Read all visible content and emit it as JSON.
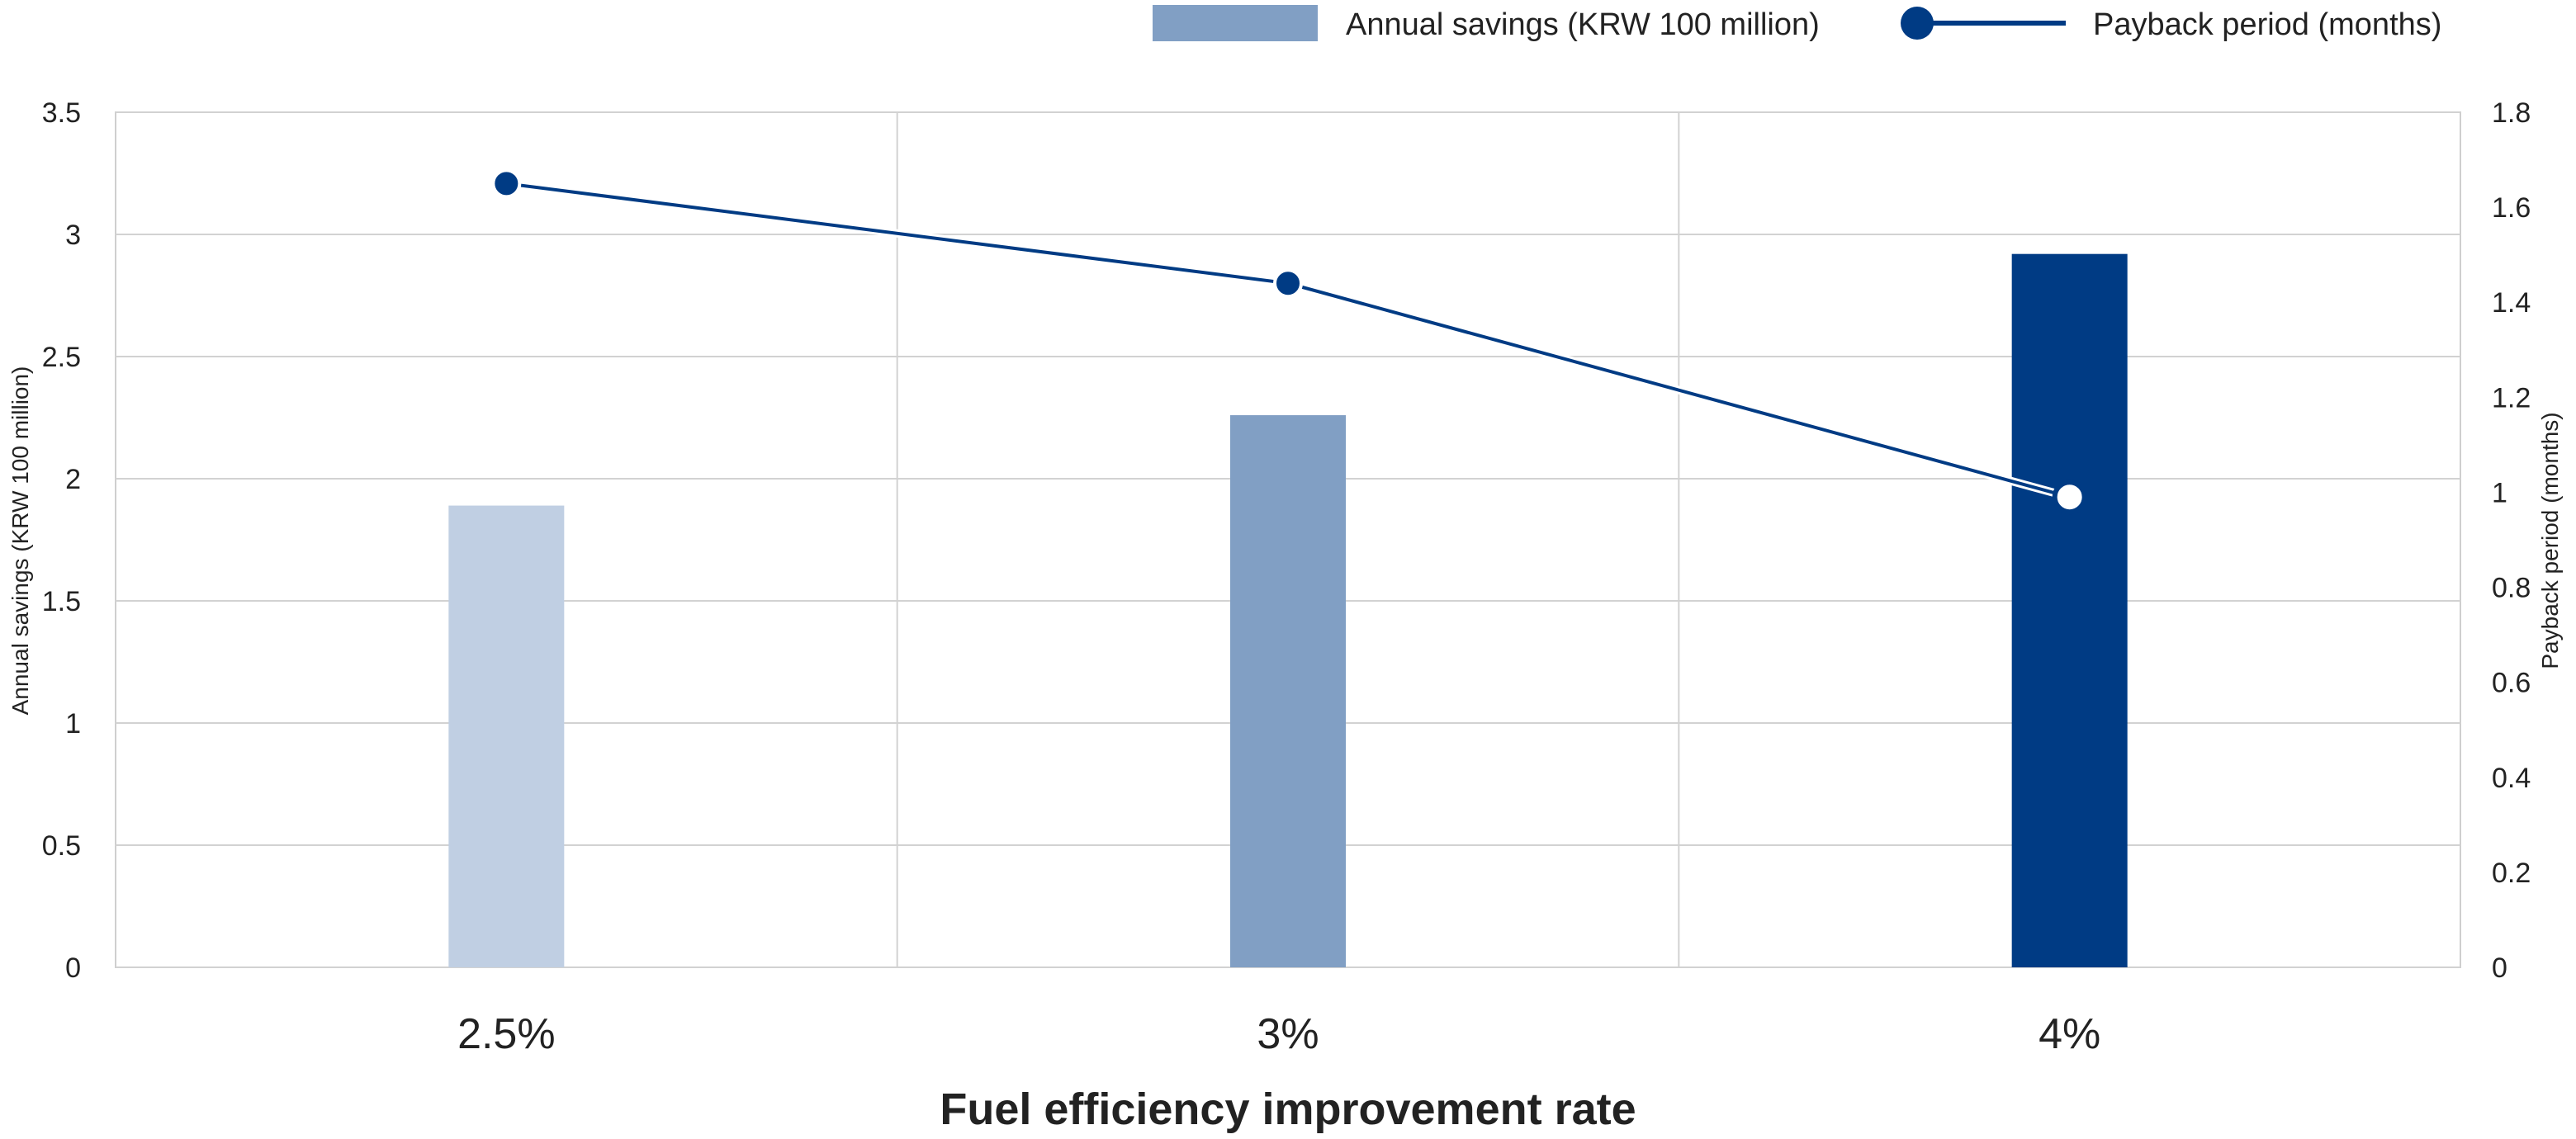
{
  "chart_data": {
    "type": "bar",
    "categories": [
      "2.5%",
      "3%",
      "4%"
    ],
    "series": [
      {
        "name": "Annual savings (KRW 100 million)",
        "type": "bar",
        "axis": "left",
        "values": [
          1.89,
          2.26,
          2.92
        ],
        "bar_colors": [
          "#c0cfe3",
          "#819fc4",
          "#003b84"
        ],
        "legend_color": "#819fc4"
      },
      {
        "name": "Payback period (months)",
        "type": "line",
        "axis": "right",
        "values": [
          1.65,
          1.44,
          0.99
        ],
        "color": "#003b84"
      }
    ],
    "xlabel": "Fuel efficiency improvement rate",
    "ylabel_left": "Annual savings (KRW 100 million)",
    "ylabel_right": "Payback period (months)",
    "ylim_left": [
      0,
      3.5
    ],
    "yticks_left": [
      "0",
      "0.5",
      "1",
      "1.5",
      "2",
      "2.5",
      "3",
      "3.5"
    ],
    "ylim_right": [
      0,
      1.8
    ],
    "yticks_right": [
      "0",
      "0.2",
      "0.4",
      "0.6",
      "0.8",
      "1",
      "1.2",
      "1.4",
      "1.6",
      "1.8"
    ],
    "grid": true,
    "legend_position": "top-right"
  }
}
